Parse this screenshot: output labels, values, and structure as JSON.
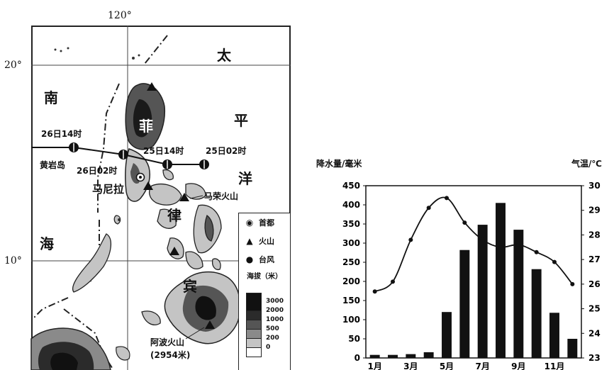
{
  "map": {
    "lon_label": "120°",
    "lat_labels": [
      "20°",
      "10°"
    ],
    "ocean_labels": {
      "south_sea": [
        "南",
        "海"
      ],
      "pacific": [
        "太",
        "平",
        "洋"
      ],
      "country": [
        "菲",
        "律",
        "宾"
      ]
    },
    "typhoon_track": [
      {
        "label": "25日02时"
      },
      {
        "label": "25日14时"
      },
      {
        "label": "26日02时"
      },
      {
        "label": "26日14时"
      }
    ],
    "places": {
      "huangyan": "黄岩岛",
      "manila": "马尼拉",
      "mayon": "马荣火山",
      "apo": "阿波火山",
      "apo_height": "(2954米)"
    },
    "legend": {
      "capital": "首都",
      "volcano": "火山",
      "typhoon": "台风",
      "elevation_title": "海拔（米）",
      "elevation_levels": [
        "3000",
        "2000",
        "1000",
        "500",
        "200",
        "0"
      ],
      "elevation_colors": [
        "#111111",
        "#2b2b2b",
        "#555555",
        "#8a8a8a",
        "#c4c4c4",
        "#ffffff"
      ]
    }
  },
  "chart_data": {
    "type": "bar+line",
    "left_axis_label": "降水量/毫米",
    "right_axis_label": "气温/℃",
    "left_ylim": [
      0,
      450
    ],
    "left_ticks": [
      "0",
      "50",
      "100",
      "150",
      "200",
      "250",
      "300",
      "350",
      "400",
      "450"
    ],
    "right_ylim": [
      23,
      30
    ],
    "right_ticks": [
      "23",
      "24",
      "25",
      "26",
      "27",
      "28",
      "29",
      "30"
    ],
    "x_tick_labels": [
      "1月",
      "3月",
      "5月",
      "7月",
      "9月",
      "11月"
    ],
    "months": [
      1,
      2,
      3,
      4,
      5,
      6,
      7,
      8,
      9,
      10,
      11,
      12
    ],
    "precipitation": [
      8,
      8,
      10,
      15,
      120,
      282,
      348,
      405,
      335,
      232,
      118,
      50
    ],
    "temperature": [
      25.7,
      26.1,
      27.8,
      29.1,
      29.5,
      28.5,
      27.8,
      27.5,
      27.6,
      27.3,
      26.9,
      26.0
    ]
  }
}
